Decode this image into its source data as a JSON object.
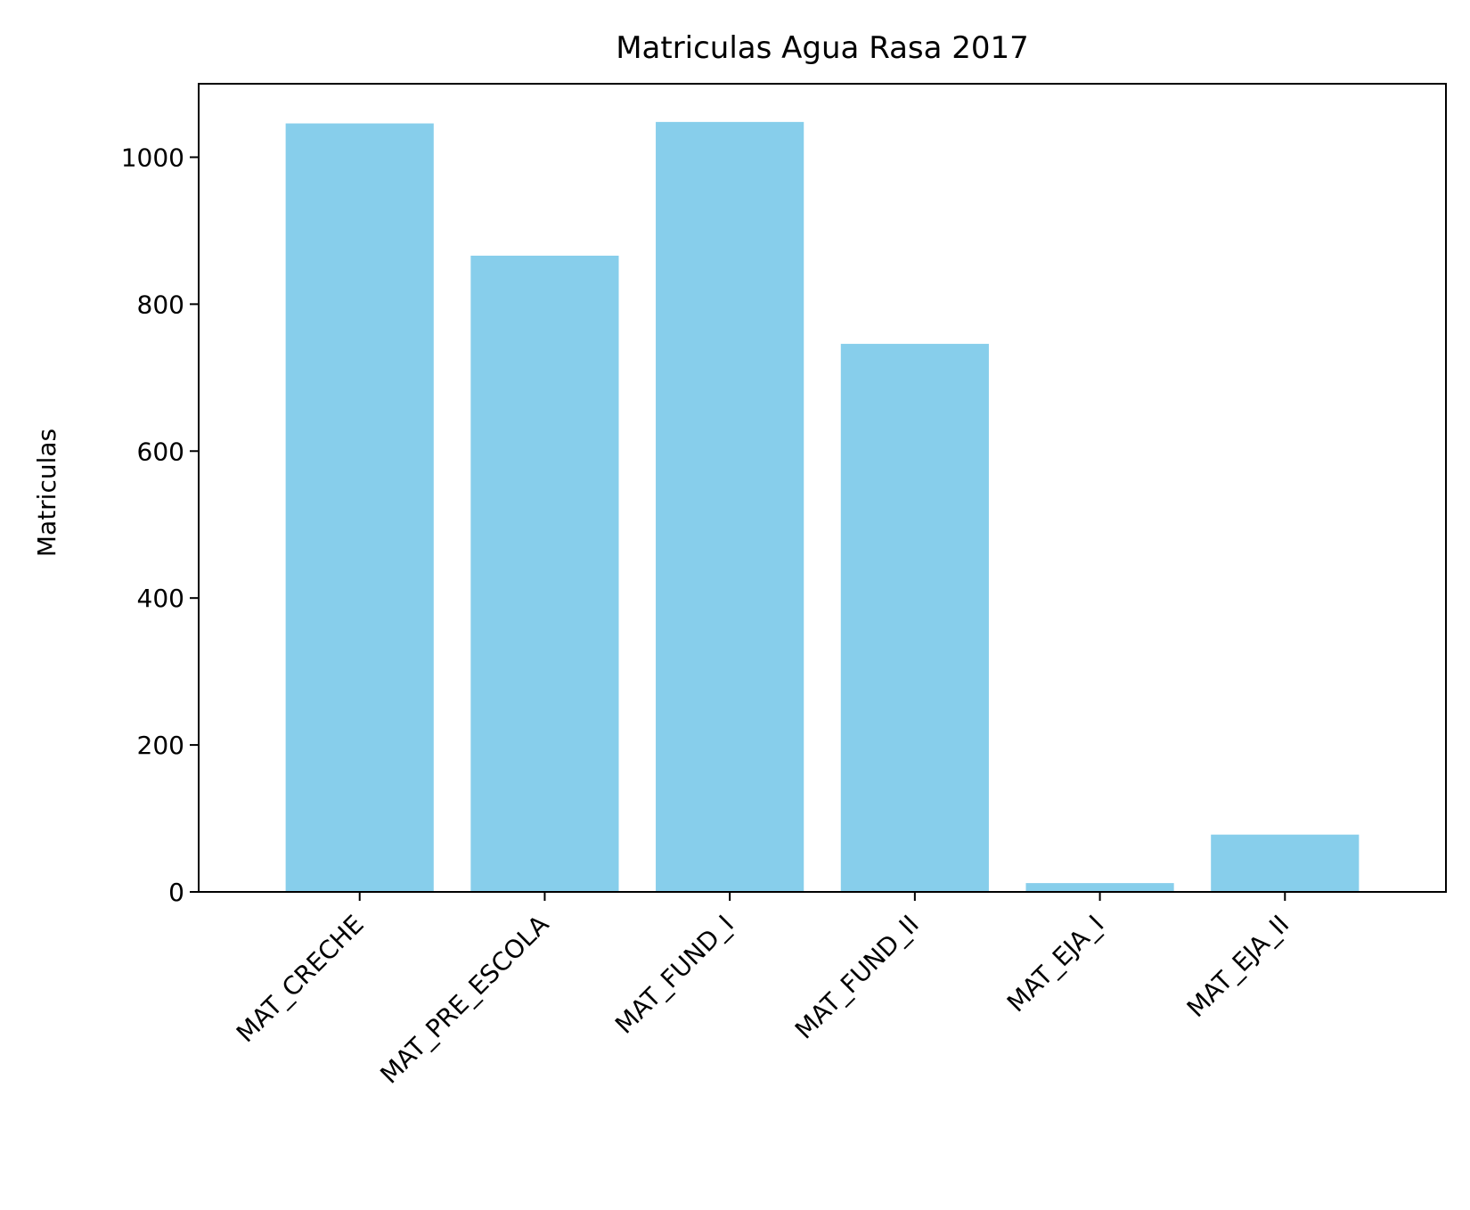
{
  "chart_data": {
    "type": "bar",
    "title": "Matriculas Agua Rasa 2017",
    "xlabel": "",
    "ylabel": "Matriculas",
    "categories": [
      "MAT_CRECHE",
      "MAT_PRE_ESCOLA",
      "MAT_FUND_I",
      "MAT_FUND_II",
      "MAT_EJA_I",
      "MAT_EJA_II"
    ],
    "values": [
      1046,
      866,
      1048,
      746,
      12,
      78
    ],
    "ylim": [
      0,
      1100
    ],
    "yticks": [
      0,
      200,
      400,
      600,
      800,
      1000
    ],
    "bar_color": "#87CEEB",
    "grid": false
  }
}
